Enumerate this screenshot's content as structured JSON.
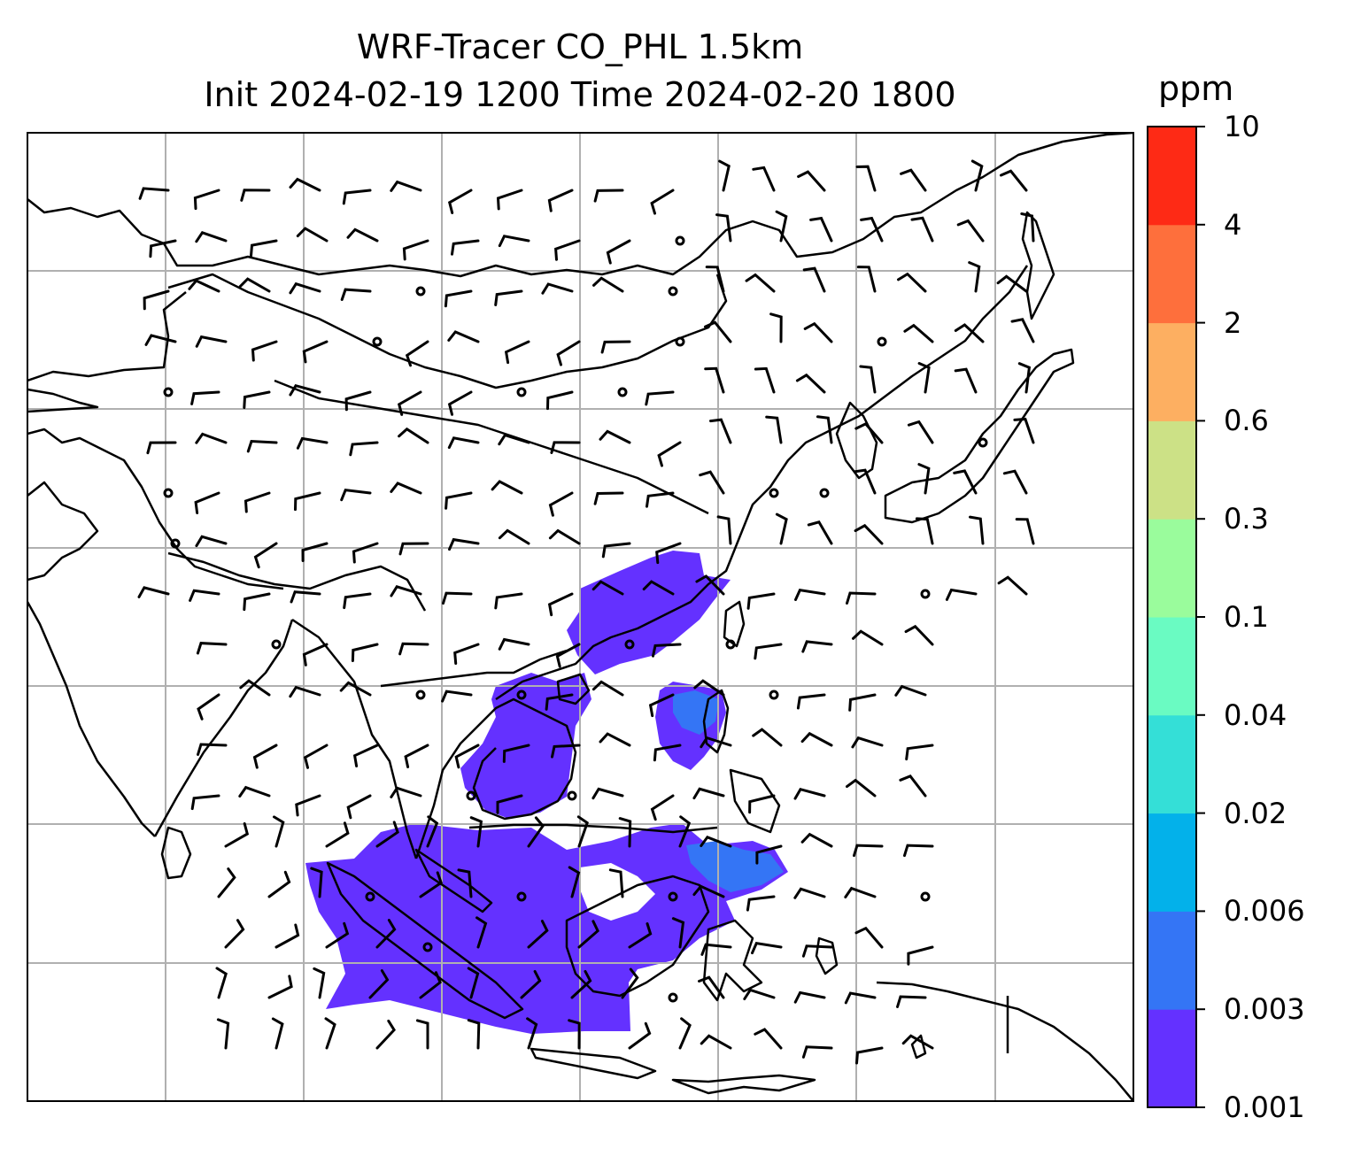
{
  "title": {
    "line1": "WRF-Tracer CO_PHL 1.5km",
    "line2": "Init 2024-02-19 1200 Time 2024-02-20 1800"
  },
  "colorbar": {
    "unit": "ppm",
    "levels": [
      "0.001",
      "0.003",
      "0.006",
      "0.02",
      "0.04",
      "0.1",
      "0.3",
      "0.6",
      "2",
      "4",
      "10"
    ],
    "colors": [
      "#6431ff",
      "#3475f5",
      "#03b1ea",
      "#34dfd7",
      "#6afbc2",
      "#9afc9c",
      "#cce186",
      "#fdaf61",
      "#fe6f3c",
      "#fe2a15"
    ]
  },
  "map": {
    "gridlines": true,
    "wind_barbs": true,
    "tracer_fill_color": "#6431ff",
    "tracer_secondary_color": "#3475f5"
  }
}
